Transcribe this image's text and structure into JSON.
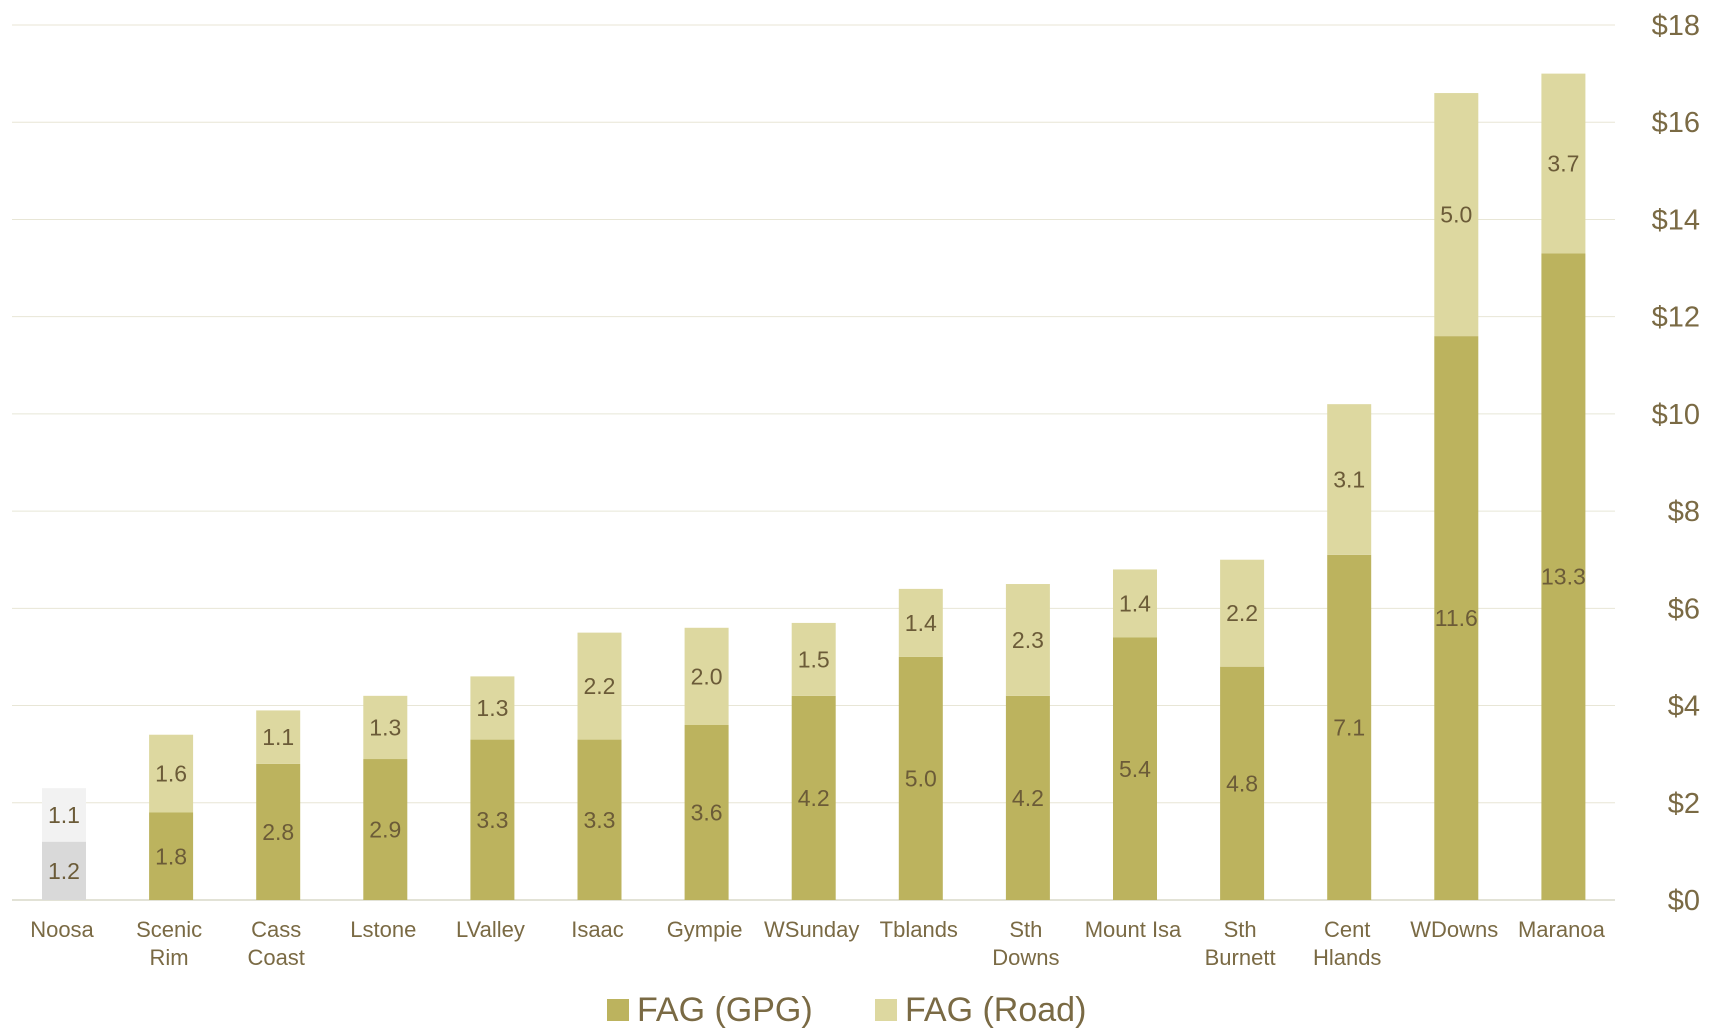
{
  "chart_data": {
    "type": "bar",
    "stacked": true,
    "categories": [
      "Noosa",
      "Scenic Rim",
      "Cass Coast",
      "Lstone",
      "LValley",
      "Isaac",
      "Gympie",
      "WSunday",
      "Tblands",
      "Sth Downs",
      "Mount Isa",
      "Sth Burnett",
      "Cent Hlands",
      "WDowns",
      "Maranoa"
    ],
    "category_lines": [
      [
        "Noosa"
      ],
      [
        "Scenic",
        "Rim"
      ],
      [
        "Cass",
        "Coast"
      ],
      [
        "Lstone"
      ],
      [
        "LValley"
      ],
      [
        "Isaac"
      ],
      [
        "Gympie"
      ],
      [
        "WSunday"
      ],
      [
        "Tblands"
      ],
      [
        "Sth",
        "Downs"
      ],
      [
        "Mount Isa"
      ],
      [
        "Sth",
        "Burnett"
      ],
      [
        "Cent",
        "Hlands"
      ],
      [
        "WDowns"
      ],
      [
        "Maranoa"
      ]
    ],
    "series": [
      {
        "name": "FAG (GPG)",
        "color": "#bcb35e",
        "values": [
          1.2,
          1.8,
          2.8,
          2.9,
          3.3,
          3.3,
          3.6,
          4.2,
          5.0,
          4.2,
          5.4,
          4.8,
          7.1,
          11.6,
          13.3
        ]
      },
      {
        "name": "FAG (Road)",
        "color": "#ddd8a0",
        "values": [
          1.1,
          1.6,
          1.1,
          1.3,
          1.3,
          2.2,
          2.0,
          1.5,
          1.4,
          2.3,
          1.4,
          2.2,
          3.1,
          5.0,
          3.7
        ]
      }
    ],
    "data_labels": [
      [
        "1.2",
        "1.8",
        "2.8",
        "2.9",
        "3.3",
        "3.3",
        "3.6",
        "4.2",
        "5.0",
        "4.2",
        "5.4",
        "4.8",
        "7.1",
        "11.6",
        "13.3"
      ],
      [
        "1.1",
        "1.6",
        "1.1",
        "1.3",
        "1.3",
        "2.2",
        "2.0",
        "1.5",
        "1.4",
        "2.3",
        "1.4",
        "2.2",
        "3.1",
        "5.0",
        "3.7"
      ]
    ],
    "highlight": {
      "category": "Noosa",
      "colors": [
        "#d9d9d9",
        "#f2f2f2"
      ]
    },
    "y_axis": {
      "position": "right",
      "ylim": [
        0,
        18
      ],
      "ticks": [
        0,
        2,
        4,
        6,
        8,
        10,
        12,
        14,
        16,
        18
      ],
      "tick_labels": [
        "$0",
        "$2",
        "$4",
        "$6",
        "$8",
        "$10",
        "$12",
        "$14",
        "$16",
        "$18"
      ]
    },
    "title": "",
    "xlabel": "",
    "ylabel": "",
    "grid": true,
    "legend": {
      "position": "bottom-center",
      "entries": [
        "FAG (GPG)",
        "FAG (Road)"
      ]
    }
  }
}
